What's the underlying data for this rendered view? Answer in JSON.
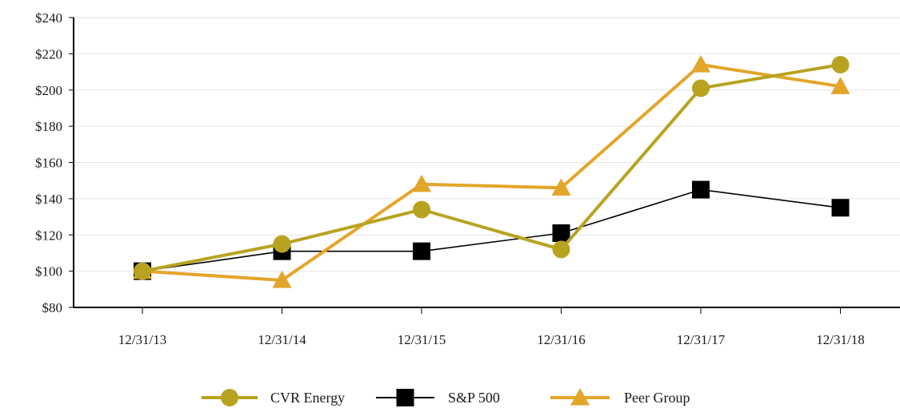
{
  "chart_data": {
    "type": "line",
    "categories": [
      "12/31/13",
      "12/31/14",
      "12/31/15",
      "12/31/16",
      "12/31/17",
      "12/31/18"
    ],
    "ylim": [
      80,
      240
    ],
    "yticks": [
      80,
      100,
      120,
      140,
      160,
      180,
      200,
      220,
      240
    ],
    "ytick_labels": [
      "$80",
      "$100",
      "$120",
      "$140",
      "$160",
      "$180",
      "$200",
      "$220",
      "$240"
    ],
    "grid": true,
    "legend_position": "bottom",
    "series": [
      {
        "name": "CVR Energy",
        "values": [
          100,
          115,
          134,
          112,
          201,
          214
        ],
        "color": "#B8A321",
        "marker": "circle"
      },
      {
        "name": "S&P 500",
        "values": [
          100,
          111,
          111,
          121,
          145,
          135
        ],
        "color": "#000000",
        "marker": "square"
      },
      {
        "name": "Peer Group",
        "values": [
          100,
          95,
          148,
          146,
          214,
          202
        ],
        "color": "#E3A52A",
        "marker": "triangle"
      }
    ]
  }
}
